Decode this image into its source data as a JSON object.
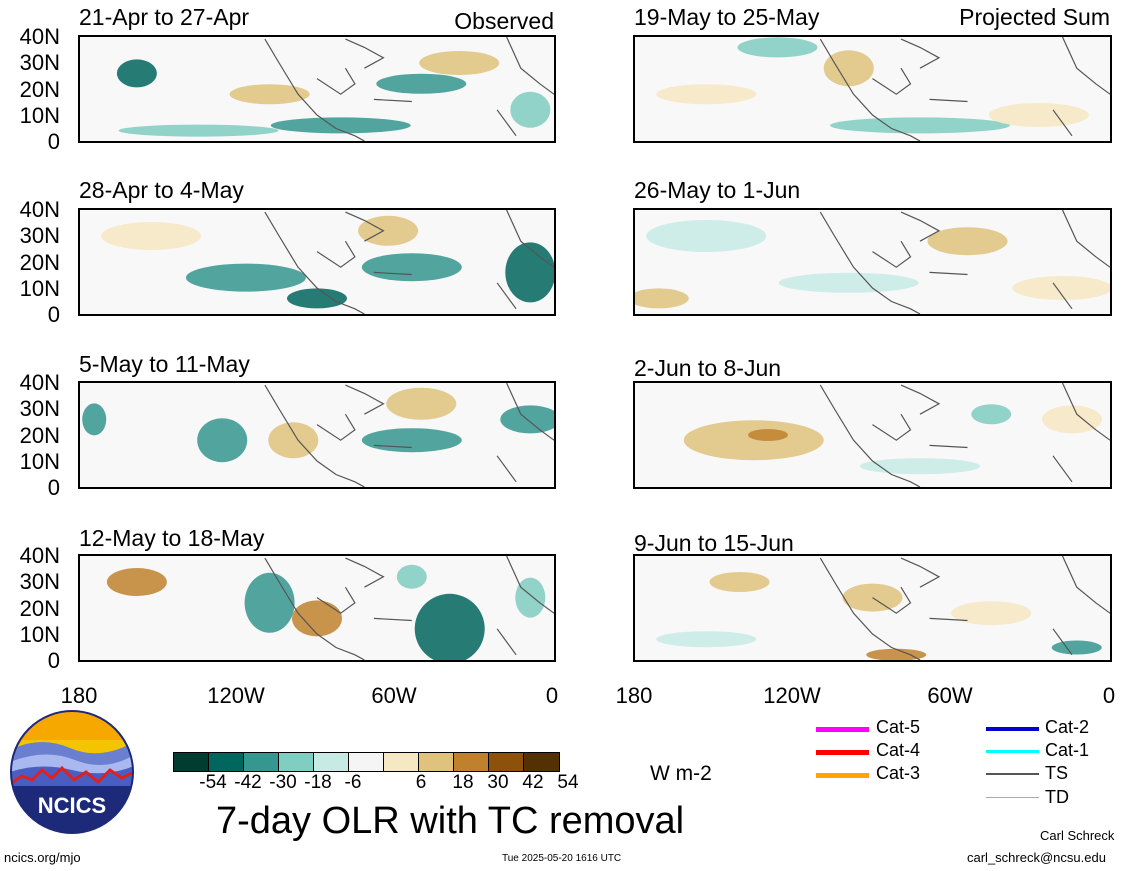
{
  "panels_left": [
    {
      "title": "21-Apr to 27-Apr",
      "note": "Observed"
    },
    {
      "title": "28-Apr to 4-May",
      "note": ""
    },
    {
      "title": "5-May to 11-May",
      "note": ""
    },
    {
      "title": "12-May to 18-May",
      "note": ""
    }
  ],
  "panels_right": [
    {
      "title": "19-May to 25-May",
      "note": "Projected Sum"
    },
    {
      "title": "26-May to 1-Jun",
      "note": ""
    },
    {
      "title": "2-Jun to 8-Jun",
      "note": ""
    },
    {
      "title": "9-Jun to 15-Jun",
      "note": ""
    }
  ],
  "lat_labels": [
    "40N",
    "30N",
    "20N",
    "10N",
    "0"
  ],
  "lon_labels": [
    "180",
    "120W",
    "60W",
    "0"
  ],
  "colorbar": {
    "ticks": [
      "-54",
      "-42",
      "-30",
      "-18",
      "-6",
      "6",
      "18",
      "30",
      "42",
      "54"
    ],
    "colors": [
      "#003c30",
      "#01665e",
      "#35978f",
      "#80cdc1",
      "#c7eae5",
      "#f5f5f5",
      "#f6e8c3",
      "#dfc27d",
      "#bf812d",
      "#8c510a",
      "#543005"
    ],
    "units": "W m-2"
  },
  "main_title": "7-day OLR with TC removal",
  "legend": [
    {
      "label": "Cat-5",
      "color": "#ff00ff"
    },
    {
      "label": "Cat-4",
      "color": "#ff0000"
    },
    {
      "label": "Cat-3",
      "color": "#ffa500"
    },
    {
      "label": "Cat-2",
      "color": "#0000cc"
    },
    {
      "label": "Cat-1",
      "color": "#00ffff"
    },
    {
      "label": "TS",
      "color": "#555555"
    },
    {
      "label": "TD",
      "color": "#aaaaaa"
    }
  ],
  "logo_text": "NCICS",
  "footer": {
    "left": "ncics.org/mjo",
    "center": "Tue 2025-05-20 1616 UTC",
    "author": "Carl Schreck",
    "email": "carl_schreck@ncsu.edu"
  }
}
